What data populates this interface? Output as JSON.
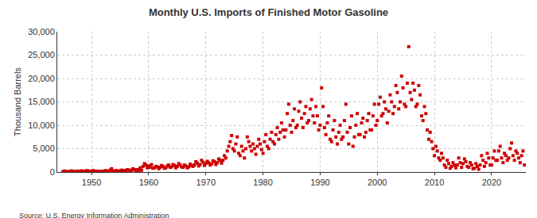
{
  "chart_data": {
    "type": "scatter",
    "title": "Monthly U.S. Imports of Finished Motor Gasoline",
    "y_label": "Thousand Barrels",
    "source": "Source: U.S. Energy Information Administration",
    "color": "#cc0000",
    "marker": "square",
    "grid": true,
    "xlim": [
      1944,
      2026
    ],
    "xticks": [
      1950,
      1960,
      1970,
      1980,
      1990,
      2000,
      2010,
      2020
    ],
    "ylim": [
      0,
      30000
    ],
    "yticks": [
      0,
      {
        "value": 5000,
        "label": "5,000"
      },
      {
        "value": 10000,
        "label": "10,000"
      },
      {
        "value": 15000,
        "label": "15,000"
      },
      {
        "value": 20000,
        "label": "20,000"
      },
      {
        "value": 25000,
        "label": "25,000"
      },
      {
        "value": 30000,
        "label": "30,000"
      }
    ],
    "x": [
      1945,
      1945.25,
      1945.5,
      1945.75,
      1946,
      1946.25,
      1946.5,
      1946.75,
      1947,
      1947.25,
      1947.5,
      1947.75,
      1948,
      1948.25,
      1948.5,
      1948.75,
      1949,
      1949.25,
      1949.5,
      1949.75,
      1950,
      1950.25,
      1950.5,
      1950.75,
      1951,
      1951.25,
      1951.5,
      1951.75,
      1952,
      1952.25,
      1952.5,
      1952.75,
      1953,
      1953.25,
      1953.5,
      1953.75,
      1954,
      1954.25,
      1954.5,
      1954.75,
      1955,
      1955.25,
      1955.5,
      1955.75,
      1956,
      1956.25,
      1956.5,
      1956.75,
      1957,
      1957.25,
      1957.5,
      1957.75,
      1958,
      1958.25,
      1958.5,
      1958.75,
      1959,
      1959.25,
      1959.5,
      1959.75,
      1960,
      1960.25,
      1960.5,
      1960.75,
      1961,
      1961.25,
      1961.5,
      1961.75,
      1962,
      1962.25,
      1962.5,
      1962.75,
      1963,
      1963.25,
      1963.5,
      1963.75,
      1964,
      1964.25,
      1964.5,
      1964.75,
      1965,
      1965.25,
      1965.5,
      1965.75,
      1966,
      1966.25,
      1966.5,
      1966.75,
      1967,
      1967.25,
      1967.5,
      1967.75,
      1968,
      1968.25,
      1968.5,
      1968.75,
      1969,
      1969.25,
      1969.5,
      1969.75,
      1970,
      1970.25,
      1970.5,
      1970.75,
      1971,
      1971.25,
      1971.5,
      1971.75,
      1972,
      1972.25,
      1972.5,
      1972.75,
      1973,
      1973.25,
      1973.5,
      1973.75,
      1974,
      1974.25,
      1974.5,
      1974.75,
      1975,
      1975.25,
      1975.5,
      1975.75,
      1976,
      1976.25,
      1976.5,
      1976.75,
      1977,
      1977.25,
      1977.5,
      1977.75,
      1978,
      1978.25,
      1978.5,
      1978.75,
      1979,
      1979.25,
      1979.5,
      1979.75,
      1980,
      1980.25,
      1980.5,
      1980.75,
      1981,
      1981.25,
      1981.5,
      1981.75,
      1982,
      1982.25,
      1982.5,
      1982.75,
      1983,
      1983.25,
      1983.5,
      1983.75,
      1984,
      1984.25,
      1984.5,
      1984.75,
      1985,
      1985.25,
      1985.5,
      1985.75,
      1986,
      1986.25,
      1986.5,
      1986.75,
      1987,
      1987.25,
      1987.5,
      1987.75,
      1988,
      1988.25,
      1988.5,
      1988.75,
      1989,
      1989.25,
      1989.5,
      1989.75,
      1990,
      1990.25,
      1990.5,
      1990.75,
      1991,
      1991.25,
      1991.5,
      1991.75,
      1992,
      1992.25,
      1992.5,
      1992.75,
      1993,
      1993.25,
      1993.5,
      1993.75,
      1994,
      1994.25,
      1994.5,
      1994.75,
      1995,
      1995.25,
      1995.5,
      1995.75,
      1996,
      1996.25,
      1996.5,
      1996.75,
      1997,
      1997.25,
      1997.5,
      1997.75,
      1998,
      1998.25,
      1998.5,
      1998.75,
      1999,
      1999.25,
      1999.5,
      1999.75,
      2000,
      2000.25,
      2000.5,
      2000.75,
      2001,
      2001.25,
      2001.5,
      2001.75,
      2002,
      2002.25,
      2002.5,
      2002.75,
      2003,
      2003.25,
      2003.5,
      2003.75,
      2004,
      2004.25,
      2004.5,
      2004.75,
      2005,
      2005.25,
      2005.5,
      2005.75,
      2006,
      2006.25,
      2006.5,
      2006.75,
      2007,
      2007.25,
      2007.5,
      2007.75,
      2008,
      2008.25,
      2008.5,
      2008.75,
      2009,
      2009.25,
      2009.5,
      2009.75,
      2010,
      2010.25,
      2010.5,
      2010.75,
      2011,
      2011.25,
      2011.5,
      2011.75,
      2012,
      2012.25,
      2012.5,
      2012.75,
      2013,
      2013.25,
      2013.5,
      2013.75,
      2014,
      2014.25,
      2014.5,
      2014.75,
      2015,
      2015.25,
      2015.5,
      2015.75,
      2016,
      2016.25,
      2016.5,
      2016.75,
      2017,
      2017.25,
      2017.5,
      2017.75,
      2018,
      2018.25,
      2018.5,
      2018.75,
      2019,
      2019.25,
      2019.5,
      2019.75,
      2020,
      2020.25,
      2020.5,
      2020.75,
      2021,
      2021.25,
      2021.5,
      2021.75,
      2022,
      2022.25,
      2022.5,
      2022.75,
      2023,
      2023.25,
      2023.5,
      2023.75,
      2024,
      2024.25,
      2024.5,
      2024.75,
      2025,
      2025.25,
      2025.5,
      2025.75
    ],
    "values": [
      100,
      200,
      150,
      50,
      80,
      150,
      250,
      100,
      50,
      100,
      200,
      80,
      100,
      250,
      150,
      60,
      200,
      300,
      150,
      100,
      150,
      300,
      200,
      100,
      200,
      100,
      50,
      150,
      100,
      200,
      300,
      150,
      150,
      400,
      700,
      200,
      200,
      300,
      250,
      150,
      250,
      400,
      350,
      200,
      300,
      500,
      400,
      250,
      400,
      700,
      500,
      350,
      500,
      300,
      900,
      400,
      1200,
      1800,
      1500,
      900,
      1300,
      1000,
      1600,
      800,
      900,
      1200,
      1100,
      700,
      1000,
      1400,
      1200,
      800,
      900,
      1300,
      1500,
      1000,
      1100,
      1600,
      1400,
      900,
      1200,
      1800,
      1500,
      1100,
      1000,
      1500,
      1300,
      900,
      1100,
      1700,
      1400,
      1200,
      1500,
      2200,
      1900,
      1300,
      1600,
      2500,
      2100,
      1400,
      1800,
      2300,
      2000,
      1500,
      1700,
      2400,
      2200,
      1600,
      2000,
      2800,
      2500,
      1900,
      2500,
      3500,
      3000,
      4500,
      5500,
      6500,
      7800,
      5000,
      4500,
      6000,
      7500,
      4000,
      3500,
      5500,
      4500,
      3000,
      5000,
      7500,
      6500,
      5500,
      4500,
      6000,
      5000,
      3800,
      5500,
      7000,
      6000,
      4800,
      4000,
      6500,
      8000,
      5500,
      5000,
      7000,
      8500,
      6500,
      6000,
      8000,
      9500,
      7000,
      8500,
      10500,
      9000,
      7500,
      9000,
      12500,
      14500,
      10000,
      8500,
      11000,
      13500,
      9500,
      10000,
      13000,
      15000,
      11500,
      9500,
      12500,
      14000,
      10500,
      11000,
      13500,
      15500,
      12000,
      10500,
      14000,
      12000,
      9000,
      10000,
      18000,
      14000,
      9500,
      8000,
      10500,
      12000,
      7000,
      6500,
      9000,
      11000,
      7500,
      6000,
      8500,
      10000,
      7000,
      7500,
      11000,
      14500,
      8500,
      6000,
      9500,
      12000,
      5500,
      7500,
      10000,
      12500,
      8000,
      8000,
      10500,
      11500,
      7500,
      8500,
      11000,
      12500,
      9000,
      9000,
      12000,
      14500,
      10000,
      11000,
      14500,
      16000,
      12000,
      12500,
      15000,
      13500,
      10500,
      13000,
      16500,
      15000,
      12500,
      14000,
      18500,
      17000,
      13500,
      15000,
      20500,
      18000,
      14500,
      14000,
      19000,
      26800,
      17000,
      15500,
      19000,
      17500,
      14000,
      14500,
      18500,
      16500,
      12000,
      11000,
      14000,
      12500,
      9000,
      7000,
      8500,
      6500,
      5000,
      3500,
      5500,
      4500,
      3000,
      2500,
      4000,
      3000,
      1500,
      1000,
      2500,
      1800,
      800,
      1200,
      2000,
      1500,
      900,
      1500,
      3000,
      2000,
      1000,
      1800,
      2800,
      2200,
      1200,
      1000,
      2000,
      1500,
      700,
      800,
      1800,
      1200,
      600,
      1500,
      3500,
      2500,
      1200,
      2000,
      4000,
      3000,
      1500,
      1500,
      3000,
      4500,
      2500,
      2500,
      4500,
      5500,
      3000,
      2000,
      4000,
      3500,
      2500,
      3000,
      5000,
      6200,
      3500,
      2500,
      4500,
      4000,
      3000,
      2000,
      3500,
      4500,
      1500
    ]
  }
}
